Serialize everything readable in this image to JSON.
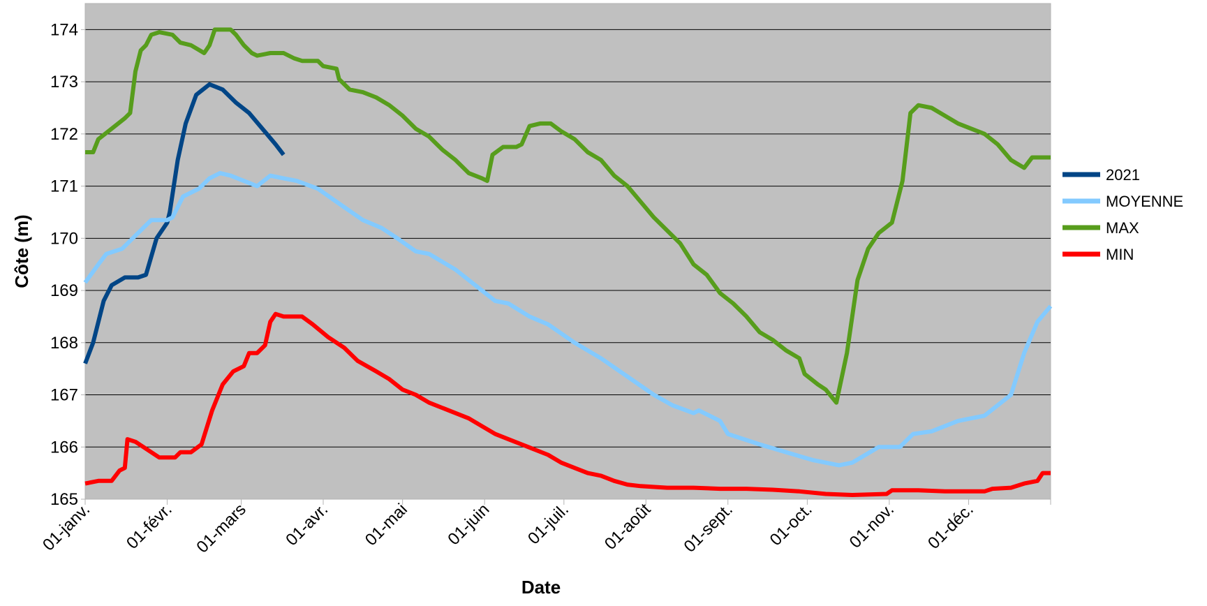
{
  "chart_data": {
    "type": "line",
    "x_label": "Date",
    "y_label": "Côte (m)",
    "xlim": [
      0,
      365
    ],
    "xticks": [
      {
        "value": 0,
        "label": "01-janv."
      },
      {
        "value": 31,
        "label": "01-févr."
      },
      {
        "value": 59,
        "label": "01-mars"
      },
      {
        "value": 90,
        "label": "01-avr."
      },
      {
        "value": 120,
        "label": "01-mai"
      },
      {
        "value": 151,
        "label": "01-juin"
      },
      {
        "value": 181,
        "label": "01-juil."
      },
      {
        "value": 212,
        "label": "01-août"
      },
      {
        "value": 243,
        "label": "01-sept."
      },
      {
        "value": 273,
        "label": "01-oct."
      },
      {
        "value": 304,
        "label": "01-nov."
      },
      {
        "value": 334,
        "label": "01-déc."
      },
      {
        "value": 365,
        "label": null
      }
    ],
    "ylim": [
      165,
      174.5
    ],
    "yticks": [
      165,
      166,
      167,
      168,
      169,
      170,
      171,
      172,
      173,
      174
    ],
    "grid": true,
    "legend": "right",
    "background": "#c0c0c0",
    "series": [
      {
        "name": "2021",
        "color": "#004586",
        "x": [
          0,
          3,
          7,
          10,
          15,
          20,
          23,
          27,
          31,
          32,
          35,
          38,
          42,
          47,
          52,
          57,
          62,
          67,
          72,
          75
        ],
        "values": [
          167.6,
          168.0,
          168.8,
          169.1,
          169.25,
          169.25,
          169.3,
          170.0,
          170.3,
          170.5,
          171.5,
          172.2,
          172.75,
          172.95,
          172.85,
          172.6,
          172.4,
          172.1,
          171.8,
          171.6
        ]
      },
      {
        "name": "MOYENNE",
        "color": "#83caff",
        "x": [
          0,
          5,
          8,
          14,
          20,
          25,
          31,
          33,
          37,
          43,
          47,
          51,
          55,
          60,
          65,
          70,
          75,
          80,
          88,
          95,
          105,
          112,
          118,
          125,
          130,
          140,
          150,
          155,
          160,
          168,
          175,
          185,
          195,
          205,
          215,
          222,
          230,
          232,
          240,
          243,
          255,
          265,
          275,
          285,
          290,
          295,
          300,
          308,
          313,
          320,
          330,
          340,
          350,
          355,
          360,
          365
        ],
        "values": [
          169.15,
          169.5,
          169.7,
          169.8,
          170.1,
          170.35,
          170.35,
          170.4,
          170.8,
          170.95,
          171.15,
          171.25,
          171.2,
          171.1,
          171.0,
          171.2,
          171.15,
          171.1,
          170.95,
          170.7,
          170.35,
          170.2,
          170.0,
          169.75,
          169.7,
          169.4,
          169.0,
          168.8,
          168.75,
          168.5,
          168.35,
          168.0,
          167.7,
          167.35,
          167.0,
          166.8,
          166.65,
          166.7,
          166.5,
          166.25,
          166.05,
          165.9,
          165.75,
          165.65,
          165.7,
          165.85,
          166.0,
          166.0,
          166.25,
          166.3,
          166.5,
          166.6,
          167.0,
          167.8,
          168.4,
          168.7
        ]
      },
      {
        "name": "MAX",
        "color": "#579d1c",
        "x": [
          0,
          3,
          5,
          10,
          15,
          17,
          19,
          21,
          23,
          25,
          28,
          33,
          36,
          40,
          45,
          47,
          49,
          55,
          57,
          60,
          63,
          65,
          70,
          75,
          79,
          82,
          88,
          90,
          95,
          96,
          100,
          105,
          110,
          115,
          120,
          125,
          130,
          135,
          140,
          145,
          150,
          152,
          154,
          158,
          163,
          165,
          168,
          172,
          176,
          180,
          185,
          190,
          195,
          200,
          205,
          210,
          215,
          220,
          225,
          230,
          235,
          240,
          245,
          250,
          255,
          260,
          265,
          270,
          272,
          277,
          280,
          284,
          288,
          292,
          296,
          300,
          305,
          309,
          312,
          315,
          320,
          325,
          330,
          340,
          345,
          350,
          355,
          358,
          365
        ],
        "values": [
          171.65,
          171.65,
          171.9,
          172.1,
          172.3,
          172.4,
          173.2,
          173.6,
          173.7,
          173.9,
          173.95,
          173.9,
          173.75,
          173.7,
          173.55,
          173.7,
          174.0,
          174.0,
          173.9,
          173.7,
          173.55,
          173.5,
          173.55,
          173.55,
          173.45,
          173.4,
          173.4,
          173.3,
          173.25,
          173.05,
          172.85,
          172.8,
          172.7,
          172.55,
          172.35,
          172.1,
          171.95,
          171.7,
          171.5,
          171.25,
          171.15,
          171.1,
          171.6,
          171.75,
          171.75,
          171.8,
          172.15,
          172.2,
          172.2,
          172.05,
          171.9,
          171.65,
          171.5,
          171.2,
          171.0,
          170.7,
          170.4,
          170.15,
          169.9,
          169.5,
          169.3,
          168.95,
          168.75,
          168.5,
          168.2,
          168.05,
          167.85,
          167.7,
          167.4,
          167.2,
          167.1,
          166.85,
          167.8,
          169.2,
          169.8,
          170.1,
          170.3,
          171.1,
          172.4,
          172.55,
          172.5,
          172.35,
          172.2,
          172.0,
          171.8,
          171.5,
          171.35,
          171.55,
          171.55
        ]
      },
      {
        "name": "MIN",
        "color": "#ff0000",
        "x": [
          0,
          5,
          10,
          13,
          15,
          16,
          19,
          22,
          25,
          28,
          34,
          36,
          40,
          44,
          48,
          52,
          56,
          60,
          62,
          65,
          68,
          70,
          72,
          75,
          82,
          86,
          92,
          98,
          103,
          110,
          115,
          120,
          125,
          130,
          140,
          145,
          150,
          155,
          160,
          165,
          170,
          175,
          180,
          185,
          190,
          195,
          200,
          205,
          210,
          220,
          230,
          240,
          250,
          260,
          270,
          280,
          290,
          303,
          305,
          315,
          325,
          340,
          343,
          350,
          355,
          360,
          362,
          365
        ],
        "values": [
          165.3,
          165.35,
          165.35,
          165.55,
          165.6,
          166.15,
          166.1,
          166.0,
          165.9,
          165.8,
          165.8,
          165.9,
          165.9,
          166.05,
          166.7,
          167.2,
          167.45,
          167.55,
          167.8,
          167.8,
          167.95,
          168.4,
          168.55,
          168.5,
          168.5,
          168.35,
          168.1,
          167.9,
          167.65,
          167.45,
          167.3,
          167.1,
          167.0,
          166.85,
          166.65,
          166.55,
          166.4,
          166.25,
          166.15,
          166.05,
          165.95,
          165.85,
          165.7,
          165.6,
          165.5,
          165.45,
          165.35,
          165.28,
          165.25,
          165.22,
          165.22,
          165.2,
          165.2,
          165.18,
          165.15,
          165.1,
          165.08,
          165.1,
          165.17,
          165.17,
          165.15,
          165.15,
          165.2,
          165.22,
          165.3,
          165.35,
          165.5,
          165.5
        ]
      }
    ]
  }
}
